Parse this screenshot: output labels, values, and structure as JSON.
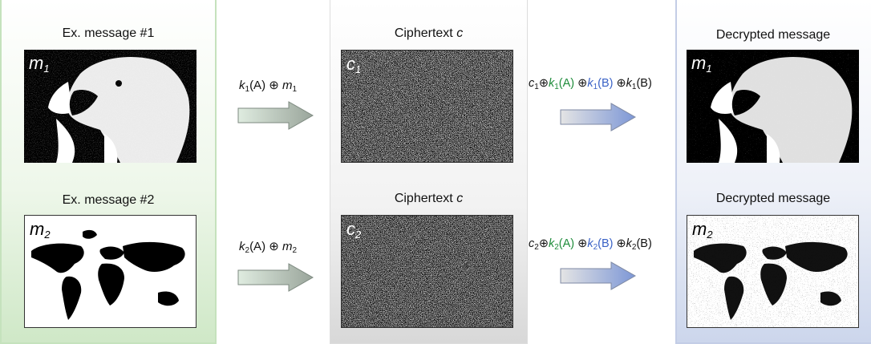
{
  "left": {
    "top": {
      "title": "Ex. message #1",
      "label": "m",
      "sub": "1"
    },
    "bottom": {
      "title": "Ex. message #2",
      "label": "m",
      "sub": "2"
    }
  },
  "middle": {
    "top": {
      "title": "Ciphertext",
      "title_var": "c",
      "label": "c",
      "sub": "1"
    },
    "bottom": {
      "title": "Ciphertext",
      "title_var": "c",
      "label": "c",
      "sub": "2"
    }
  },
  "right": {
    "top": {
      "title": "Decrypted message",
      "label": "m",
      "sub": "1"
    },
    "bottom": {
      "title": "Decrypted message",
      "label": "m",
      "sub": "2"
    }
  },
  "encrypt": {
    "top": {
      "k": "k",
      "ksub": "1",
      "arg": "(A)",
      "op": "⊕",
      "m": "m",
      "msub": "1"
    },
    "bottom": {
      "k": "k",
      "ksub": "2",
      "arg": "(A)",
      "op": "⊕",
      "m": "m",
      "msub": "2"
    }
  },
  "decrypt": {
    "top": {
      "c": "c",
      "csub": "1",
      "op": "⊕",
      "k": "k",
      "ksub": "1",
      "argA": "(A)",
      "argB": "(B)"
    },
    "bottom": {
      "c": "c",
      "csub": "2",
      "op": "⊕",
      "k": "k",
      "ksub": "2",
      "argA": "(A)",
      "argB": "(B)"
    }
  },
  "colors": {
    "green": "#1e8c3a",
    "blue": "#3a62c6"
  }
}
